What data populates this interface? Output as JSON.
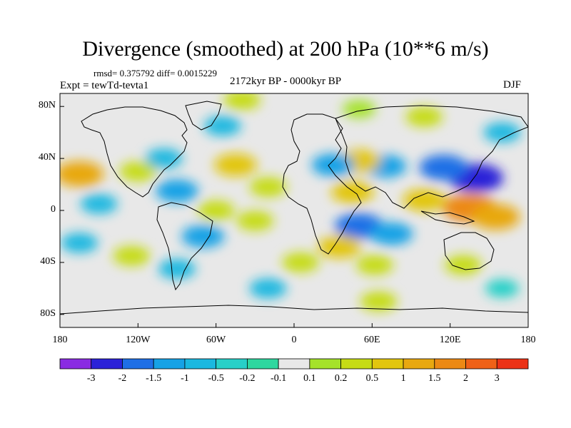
{
  "figure": {
    "title": "Divergence (smoothed) at 200 hPa (10**6 m/s)",
    "stats": "rmsd= 0.375792 diff= 0.0015229",
    "period": "2172kyr BP - 0000kyr BP",
    "experiment": "Expt = tewTd-tevta1",
    "season": "DJF",
    "projection": "cylindrical equidistant"
  },
  "axes": {
    "lat_ticks": [
      {
        "label": "80N",
        "value": 80
      },
      {
        "label": "40N",
        "value": 40
      },
      {
        "label": "0",
        "value": 0
      },
      {
        "label": "40S",
        "value": -40
      },
      {
        "label": "80S",
        "value": -80
      }
    ],
    "lon_ticks": [
      {
        "label": "180",
        "value": -180
      },
      {
        "label": "120W",
        "value": -120
      },
      {
        "label": "60W",
        "value": -60
      },
      {
        "label": "0",
        "value": 0
      },
      {
        "label": "60E",
        "value": 60
      },
      {
        "label": "120E",
        "value": 120
      },
      {
        "label": "180",
        "value": 180
      }
    ],
    "lon_range": [
      -180,
      180
    ],
    "lat_range": [
      -90,
      90
    ]
  },
  "colorbar": {
    "colors": [
      "#8a2be2",
      "#2b22d8",
      "#1f6fe6",
      "#16a2e6",
      "#1ab8e0",
      "#28d0c8",
      "#2ed79f",
      "#e8e8e8",
      "#a5e22a",
      "#c6dc15",
      "#e2c60e",
      "#e8a810",
      "#ec8914",
      "#ef6117",
      "#ec3216"
    ],
    "labels": [
      "-3",
      "-2",
      "-1.5",
      "-1",
      "-0.5",
      "-0.2",
      "-0.1",
      "0.1",
      "0.2",
      "0.5",
      "1",
      "1.5",
      "2",
      "3"
    ]
  },
  "chart_data": {
    "type": "heatmap",
    "variable": "Divergence (smoothed) at 200 hPa",
    "units": "10**6 m/s",
    "levels": [
      -3,
      -2,
      -1.5,
      -1,
      -0.5,
      -0.2,
      -0.1,
      0.1,
      0.2,
      0.5,
      1,
      1.5,
      2,
      3
    ],
    "features": [
      {
        "lon": 140,
        "lat": 25,
        "value": -2.0
      },
      {
        "lon": 115,
        "lat": 33,
        "value": -1.5
      },
      {
        "lon": 70,
        "lat": 34,
        "value": -1.0
      },
      {
        "lon": 135,
        "lat": 2,
        "value": 2.0
      },
      {
        "lon": 155,
        "lat": -5,
        "value": 1.5
      },
      {
        "lon": 100,
        "lat": 8,
        "value": 1.0
      },
      {
        "lon": 50,
        "lat": -12,
        "value": -1.5
      },
      {
        "lon": 75,
        "lat": -18,
        "value": -1.0
      },
      {
        "lon": 45,
        "lat": 14,
        "value": 1.0
      },
      {
        "lon": 50,
        "lat": 38,
        "value": 1.0
      },
      {
        "lon": 30,
        "lat": 35,
        "value": -1.0
      },
      {
        "lon": 35,
        "lat": -28,
        "value": 1.0
      },
      {
        "lon": 62,
        "lat": -42,
        "value": 0.5
      },
      {
        "lon": -165,
        "lat": 28,
        "value": 1.5
      },
      {
        "lon": -120,
        "lat": 30,
        "value": 0.5
      },
      {
        "lon": -150,
        "lat": 5,
        "value": -0.5
      },
      {
        "lon": -165,
        "lat": -25,
        "value": -0.5
      },
      {
        "lon": -100,
        "lat": 40,
        "value": -0.5
      },
      {
        "lon": -90,
        "lat": 15,
        "value": -1.0
      },
      {
        "lon": -60,
        "lat": 0,
        "value": 0.5
      },
      {
        "lon": -70,
        "lat": -20,
        "value": -1.0
      },
      {
        "lon": -30,
        "lat": -8,
        "value": 0.5
      },
      {
        "lon": -20,
        "lat": 18,
        "value": 0.5
      },
      {
        "lon": -45,
        "lat": 35,
        "value": 1.0
      },
      {
        "lon": -55,
        "lat": 65,
        "value": -0.5
      },
      {
        "lon": -40,
        "lat": 85,
        "value": 0.5
      },
      {
        "lon": 50,
        "lat": 78,
        "value": 0.2
      },
      {
        "lon": 100,
        "lat": 72,
        "value": 0.5
      },
      {
        "lon": 160,
        "lat": 60,
        "value": -0.5
      },
      {
        "lon": -125,
        "lat": -35,
        "value": 0.5
      },
      {
        "lon": -90,
        "lat": -45,
        "value": -0.5
      },
      {
        "lon": 5,
        "lat": -40,
        "value": 0.5
      },
      {
        "lon": 130,
        "lat": -42,
        "value": 0.5
      },
      {
        "lon": 160,
        "lat": -60,
        "value": -0.2
      },
      {
        "lon": 65,
        "lat": -70,
        "value": 0.5
      },
      {
        "lon": -20,
        "lat": -60,
        "value": -0.5
      }
    ]
  }
}
